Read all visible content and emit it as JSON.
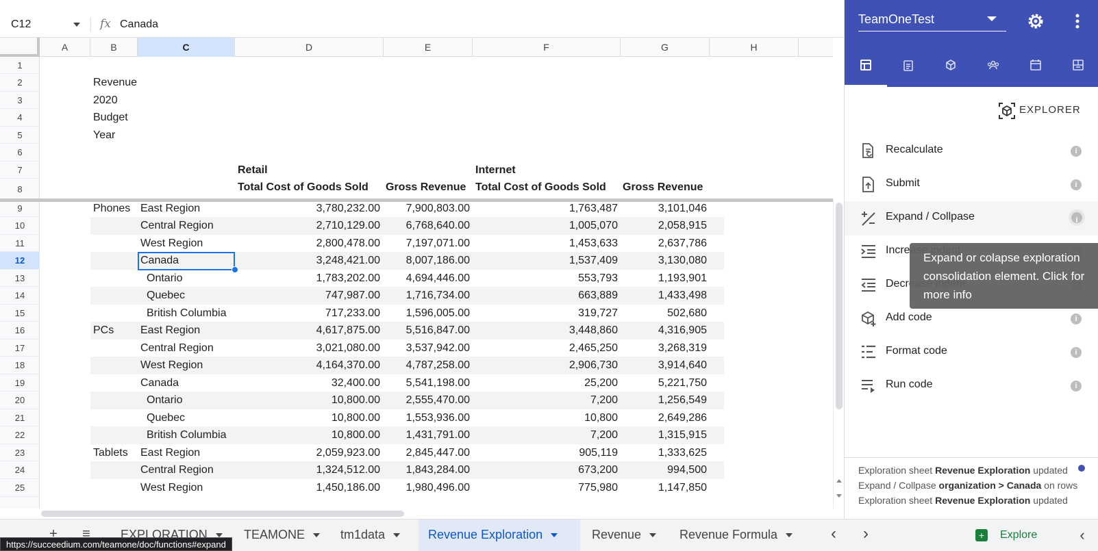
{
  "formula_bar": {
    "cell_ref": "C12",
    "fx_symbol": "fx",
    "value": "Canada"
  },
  "columns": [
    "A",
    "B",
    "C",
    "D",
    "E",
    "F",
    "G",
    "H"
  ],
  "selected_column": "C",
  "rows": [
    "1",
    "2",
    "3",
    "4",
    "5",
    "6",
    "7",
    "8",
    "9",
    "10",
    "11",
    "12",
    "13",
    "14",
    "15",
    "16",
    "17",
    "18",
    "19",
    "20",
    "21",
    "22",
    "23",
    "24",
    "25"
  ],
  "selected_row": "12",
  "title_block": [
    "Revenue",
    "2020",
    "Budget",
    "Year"
  ],
  "headers": {
    "retail": "Retail",
    "internet": "Internet",
    "d": "Total Cost of Goods Sold",
    "e": "Gross Revenue",
    "f": "Total Cost of Goods Sold",
    "g": "Gross Revenue"
  },
  "data_rows": [
    {
      "product": "Phones",
      "region": "East Region",
      "indent": false,
      "d": "3,780,232.00",
      "e": "7,900,803.00",
      "f": "1,763,487",
      "g": "3,101,046"
    },
    {
      "product": "",
      "region": "Central Region",
      "indent": false,
      "d": "2,710,129.00",
      "e": "6,768,640.00",
      "f": "1,005,070",
      "g": "2,058,915"
    },
    {
      "product": "",
      "region": "West Region",
      "indent": false,
      "d": "2,800,478.00",
      "e": "7,197,071.00",
      "f": "1,453,633",
      "g": "2,637,786"
    },
    {
      "product": "",
      "region": "Canada",
      "indent": false,
      "d": "3,248,421.00",
      "e": "8,007,186.00",
      "f": "1,537,409",
      "g": "3,130,080"
    },
    {
      "product": "",
      "region": "Ontario",
      "indent": true,
      "d": "1,783,202.00",
      "e": "4,694,446.00",
      "f": "553,793",
      "g": "1,193,901"
    },
    {
      "product": "",
      "region": "Quebec",
      "indent": true,
      "d": "747,987.00",
      "e": "1,716,734.00",
      "f": "663,889",
      "g": "1,433,498"
    },
    {
      "product": "",
      "region": "British Columbia",
      "indent": true,
      "d": "717,233.00",
      "e": "1,596,005.00",
      "f": "319,727",
      "g": "502,680"
    },
    {
      "product": "PCs",
      "region": "East Region",
      "indent": false,
      "d": "4,617,875.00",
      "e": "5,516,847.00",
      "f": "3,448,860",
      "g": "4,316,905"
    },
    {
      "product": "",
      "region": "Central Region",
      "indent": false,
      "d": "3,021,080.00",
      "e": "3,537,942.00",
      "f": "2,465,250",
      "g": "3,268,319"
    },
    {
      "product": "",
      "region": "West Region",
      "indent": false,
      "d": "4,164,370.00",
      "e": "4,787,258.00",
      "f": "2,906,730",
      "g": "3,914,640"
    },
    {
      "product": "",
      "region": "Canada",
      "indent": false,
      "d": "32,400.00",
      "e": "5,541,198.00",
      "f": "25,200",
      "g": "5,221,750"
    },
    {
      "product": "",
      "region": "Ontario",
      "indent": true,
      "d": "10,800.00",
      "e": "2,555,470.00",
      "f": "7,200",
      "g": "1,256,549"
    },
    {
      "product": "",
      "region": "Quebec",
      "indent": true,
      "d": "10,800.00",
      "e": "1,553,936.00",
      "f": "10,800",
      "g": "2,649,286"
    },
    {
      "product": "",
      "region": "British Columbia",
      "indent": true,
      "d": "10,800.00",
      "e": "1,431,791.00",
      "f": "7,200",
      "g": "1,315,915"
    },
    {
      "product": "Tablets",
      "region": "East Region",
      "indent": false,
      "d": "2,059,923.00",
      "e": "2,845,447.00",
      "f": "905,119",
      "g": "1,333,625"
    },
    {
      "product": "",
      "region": "Central Region",
      "indent": false,
      "d": "1,324,512.00",
      "e": "1,843,284.00",
      "f": "673,200",
      "g": "994,500"
    },
    {
      "product": "",
      "region": "West Region",
      "indent": false,
      "d": "1,450,186.00",
      "e": "1,980,496.00",
      "f": "775,980",
      "g": "1,147,850"
    }
  ],
  "sheet_tabs": [
    {
      "label": "EXPLORATION",
      "active": false,
      "partial": true
    },
    {
      "label": "TEAMONE",
      "active": false,
      "partial": true
    },
    {
      "label": "tm1data",
      "active": false
    },
    {
      "label": "Revenue Exploration",
      "active": true
    },
    {
      "label": "Revenue",
      "active": false
    },
    {
      "label": "Revenue Formula",
      "active": false
    }
  ],
  "explore_label": "Explore",
  "status_url": "https://succeedium.com/teamone/doc/functions#expand",
  "panel": {
    "model": "TeamOneTest",
    "explorer_label": "EXPLORER",
    "tab_icons": [
      "table-icon",
      "clipboard-icon",
      "cube-icon",
      "group-icon",
      "calendar-icon",
      "dashboard-icon"
    ],
    "actions": [
      {
        "label": "Recalculate",
        "icon": "recalculate-icon"
      },
      {
        "label": "Submit",
        "icon": "submit-icon"
      },
      {
        "label": "Expand / Collpase",
        "icon": "expand-collapse-icon"
      },
      {
        "label": "Increase indent",
        "icon": "increase-indent-icon"
      },
      {
        "label": "Decrease indent",
        "icon": "decrease-indent-icon"
      },
      {
        "label": "Add code",
        "icon": "add-code-icon"
      },
      {
        "label": "Format code",
        "icon": "format-code-icon"
      },
      {
        "label": "Run code",
        "icon": "run-code-icon"
      }
    ],
    "tooltip": "Expand or colapse exploration consolidation element. Click for more info",
    "log_more": "...",
    "log": [
      {
        "prefix": "Exploration sheet ",
        "bold": "Revenue Exploration",
        "suffix": " updated"
      },
      {
        "prefix": "Expand / Collpase ",
        "bold": "organization > Canada",
        "suffix": " on rows"
      },
      {
        "prefix": "Exploration sheet ",
        "bold": "Revenue Exploration",
        "suffix": " updated"
      }
    ]
  },
  "colors": {
    "accent": "#3f51b5",
    "selection": "#1a73e8",
    "header_selected": "#d3e3fd",
    "explore": "#188038"
  }
}
